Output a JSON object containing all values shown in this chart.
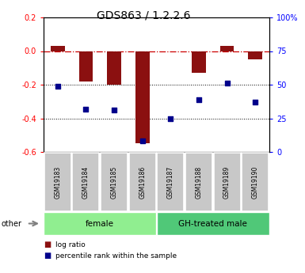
{
  "title": "GDS863 / 1.2.2.6",
  "samples": [
    "GSM19183",
    "GSM19184",
    "GSM19185",
    "GSM19186",
    "GSM19187",
    "GSM19188",
    "GSM19189",
    "GSM19190"
  ],
  "log_ratio": [
    0.03,
    -0.18,
    -0.2,
    -0.55,
    0.0,
    -0.13,
    0.03,
    -0.05
  ],
  "pr_pct": [
    49,
    32,
    31,
    8,
    25,
    39,
    51,
    37
  ],
  "ylim_left": [
    -0.6,
    0.2
  ],
  "ylim_right": [
    0,
    100
  ],
  "groups": [
    {
      "label": "female",
      "start": 0,
      "end": 4,
      "color": "#90EE90"
    },
    {
      "label": "GH-treated male",
      "start": 4,
      "end": 8,
      "color": "#50C878"
    }
  ],
  "bar_color": "#8B1010",
  "dot_color": "#00008B",
  "hline_color": "#CC0000",
  "dotted_lines": [
    -0.2,
    -0.4
  ],
  "left_ticks": [
    -0.6,
    -0.4,
    -0.2,
    0.0,
    0.2
  ],
  "right_ticks": [
    0,
    25,
    50,
    75,
    100
  ],
  "right_tick_labels": [
    "0",
    "25",
    "50",
    "75",
    "100%"
  ],
  "legend_items": [
    "log ratio",
    "percentile rank within the sample"
  ],
  "other_label": "other",
  "title_fontsize": 10,
  "sample_label_color": "#c8c8c8",
  "sample_label_fontsize": 5.5
}
